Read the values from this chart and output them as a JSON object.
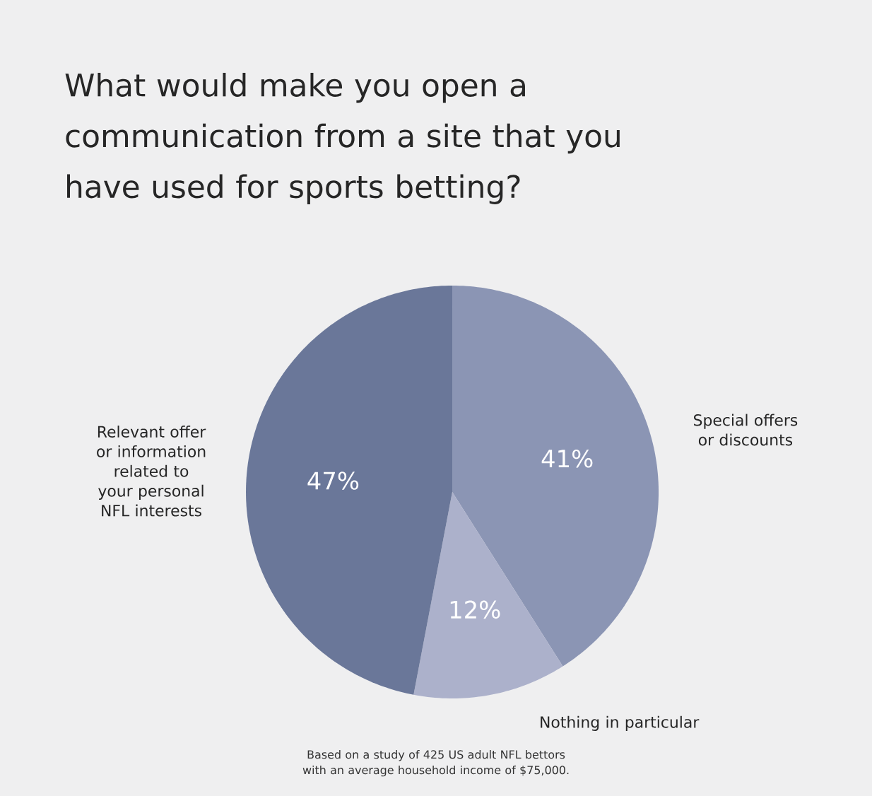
{
  "chart_data": {
    "type": "pie",
    "title": "What would make you open a communication from a site that you have used for sports betting?",
    "categories": [
      "Special offers or discounts",
      "Nothing in particular",
      "Relevant offer or information related to your personal NFL interests"
    ],
    "values": [
      41,
      12,
      47
    ],
    "value_labels": [
      "41%",
      "12%",
      "47%"
    ],
    "colors": [
      "#8b95b4",
      "#acb1cb",
      "#6a7799"
    ],
    "annotations": [
      "Based on a study of 425 US adult NFL bettors with an average household income of $75,000."
    ]
  }
}
